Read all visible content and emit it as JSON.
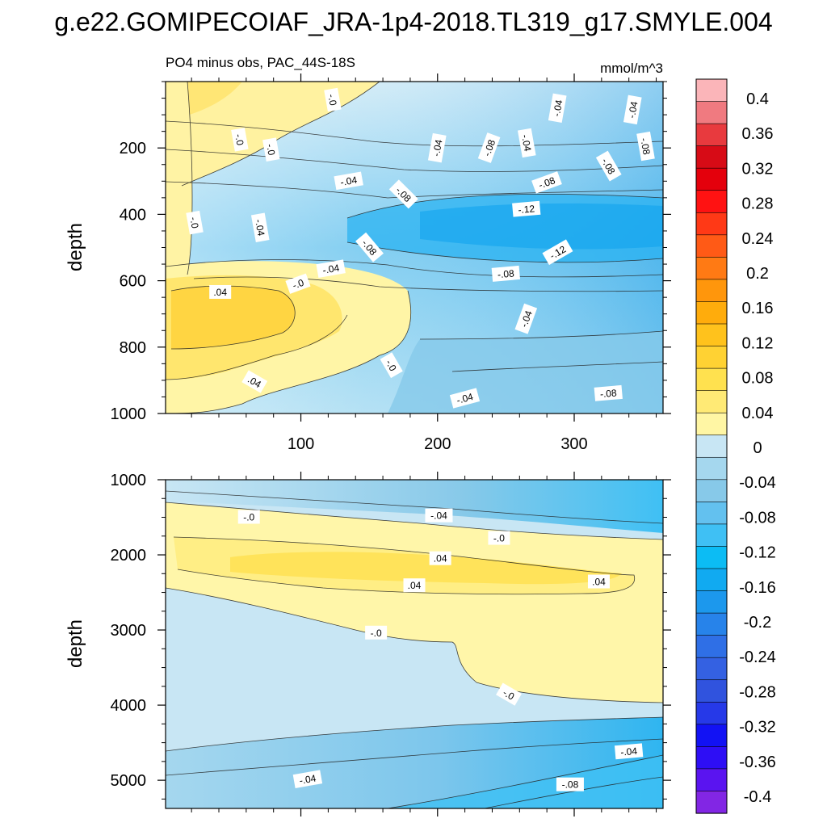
{
  "figure": {
    "title": "g.e22.GOMIPECOIAF_JRA-1p4-2018.TL319_g17.SMYLE.004"
  },
  "chart_data": [
    {
      "type": "heatmap",
      "subtitle_left": "PO4 minus obs, PAC_44S-18S",
      "subtitle_right": "mmol/m^3",
      "xlabel": "",
      "ylabel": "depth",
      "xlim": [
        1,
        365
      ],
      "ylim": [
        1000,
        0
      ],
      "xticks": [
        100,
        200,
        300
      ],
      "yticks": [
        200,
        400,
        600,
        800,
        1000
      ],
      "x_tick_labels": [
        "100",
        "200",
        "300"
      ],
      "y_tick_labels": [
        "200",
        "400",
        "600",
        "800",
        "1000"
      ],
      "field_description": "positive (0 to 0.08) in upper-left and 550-900 m band for x<180; negative -0.04 to -0.16 elsewhere, strongest near 400-500 m at x>250",
      "contour_labels": [
        {
          "text": "-.0",
          "x": 123,
          "y": 55,
          "angle": 80
        },
        {
          "text": "-.04",
          "x": 288,
          "y": 80,
          "angle": -80
        },
        {
          "text": "-.04",
          "x": 343,
          "y": 85,
          "angle": -80
        },
        {
          "text": "-.0",
          "x": 55,
          "y": 175,
          "angle": 80
        },
        {
          "text": "-.0",
          "x": 78,
          "y": 205,
          "angle": 80
        },
        {
          "text": "-.04",
          "x": 200,
          "y": 200,
          "angle": -80
        },
        {
          "text": "-.08",
          "x": 238,
          "y": 200,
          "angle": -70
        },
        {
          "text": "-.04",
          "x": 265,
          "y": 185,
          "angle": 80
        },
        {
          "text": "-.08",
          "x": 352,
          "y": 195,
          "angle": 80
        },
        {
          "text": "-.08",
          "x": 325,
          "y": 255,
          "angle": 60
        },
        {
          "text": "-.04",
          "x": 135,
          "y": 300,
          "angle": -10
        },
        {
          "text": "-.08",
          "x": 175,
          "y": 340,
          "angle": 45
        },
        {
          "text": "-.08",
          "x": 280,
          "y": 305,
          "angle": -20
        },
        {
          "text": "-.12",
          "x": 265,
          "y": 385,
          "angle": -5
        },
        {
          "text": "-.0",
          "x": 22,
          "y": 425,
          "angle": 80
        },
        {
          "text": "-.04",
          "x": 70,
          "y": 440,
          "angle": 80
        },
        {
          "text": "-.08",
          "x": 150,
          "y": 500,
          "angle": 50
        },
        {
          "text": "-.12",
          "x": 288,
          "y": 515,
          "angle": -30
        },
        {
          "text": "-.04",
          "x": 122,
          "y": 565,
          "angle": -10
        },
        {
          "text": "-.0",
          "x": 98,
          "y": 610,
          "angle": -20
        },
        {
          "text": "-.08",
          "x": 250,
          "y": 580,
          "angle": -5
        },
        {
          "text": ".04",
          "x": 41,
          "y": 635,
          "angle": 0
        },
        {
          "text": "-.04",
          "x": 265,
          "y": 715,
          "angle": -70
        },
        {
          "text": "-.0",
          "x": 166,
          "y": 855,
          "angle": 60
        },
        {
          "text": ".04",
          "x": 66,
          "y": 905,
          "angle": 30
        },
        {
          "text": "-.04",
          "x": 220,
          "y": 955,
          "angle": -15
        },
        {
          "text": "-.08",
          "x": 325,
          "y": 940,
          "angle": -5
        }
      ]
    },
    {
      "type": "heatmap",
      "xlabel": "",
      "ylabel": "depth",
      "xlim": [
        1,
        365
      ],
      "ylim": [
        5375,
        1000
      ],
      "xticks": [
        100,
        200,
        300
      ],
      "yticks": [
        1000,
        2000,
        3000,
        4000,
        5000
      ],
      "y_tick_labels": [
        "1000",
        "2000",
        "3000",
        "4000",
        "5000"
      ],
      "field_description": "slightly negative near 1000 m; positive band 1200-2800 m (max ~0.05 around 2000-2300 m); zero to slightly positive 2800-3900 m for x>200; negative below 4000 m reaching ~-0.12 at depth on the right",
      "contour_labels": [
        {
          "text": "-.0",
          "x": 62,
          "y": 1500,
          "angle": 0
        },
        {
          "text": "-.04",
          "x": 201,
          "y": 1480,
          "angle": 0
        },
        {
          "text": "-.0",
          "x": 245,
          "y": 1780,
          "angle": 0
        },
        {
          "text": ".04",
          "x": 202,
          "y": 2050,
          "angle": 0
        },
        {
          "text": ".04",
          "x": 183,
          "y": 2410,
          "angle": 0
        },
        {
          "text": ".04",
          "x": 318,
          "y": 2360,
          "angle": 0
        },
        {
          "text": "-.0",
          "x": 155,
          "y": 3040,
          "angle": 0
        },
        {
          "text": "-.0",
          "x": 252,
          "y": 3860,
          "angle": 30
        },
        {
          "text": "-.04",
          "x": 340,
          "y": 4620,
          "angle": -5
        },
        {
          "text": "-.04",
          "x": 105,
          "y": 4990,
          "angle": -10
        },
        {
          "text": "-.08",
          "x": 297,
          "y": 5060,
          "angle": 0
        }
      ]
    }
  ],
  "colorbar": {
    "levels": [
      "0.4",
      "0.36",
      "0.32",
      "0.28",
      "0.24",
      "0.2",
      "0.16",
      "0.12",
      "0.08",
      "0.04",
      "0",
      "-0.04",
      "-0.08",
      "-0.12",
      "-0.16",
      "-0.2",
      "-0.24",
      "-0.28",
      "-0.32",
      "-0.36",
      "-0.4"
    ],
    "colors": [
      "#fbb5b9",
      "#f07a80",
      "#e83a3e",
      "#d70b16",
      "#e4000c",
      "#ff1212",
      "#ff3916",
      "#ff5a16",
      "#ff7a14",
      "#ff960c",
      "#ffac0c",
      "#ffc21c",
      "#ffd233",
      "#ffe14f",
      "#ffea75",
      "#fff6a4",
      "#c8e6f4",
      "#a5d7ee",
      "#87c9e9",
      "#63c1ef",
      "#3fc0f4",
      "#0cbcf4",
      "#11aaf1",
      "#1c98ed",
      "#2783ea",
      "#2f6fe6",
      "#3461e2",
      "#3053de",
      "#2639e8",
      "#1212f4",
      "#2e0ef5",
      "#5a14f0",
      "#8226e4"
    ]
  }
}
